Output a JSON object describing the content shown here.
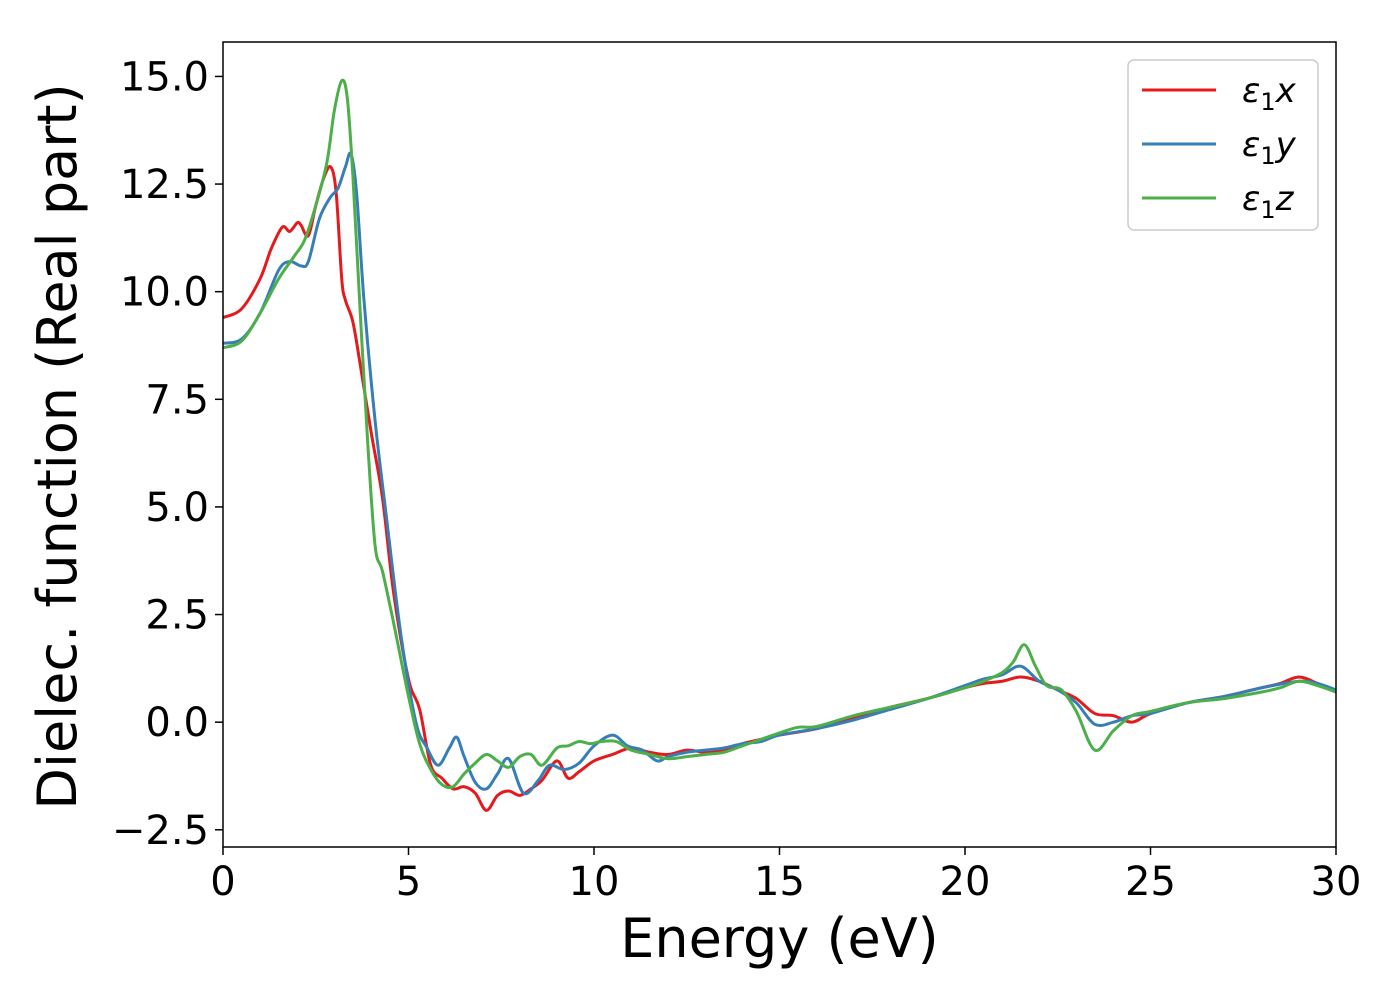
{
  "chart_data": {
    "type": "line",
    "xlabel": "Energy (eV)",
    "ylabel": "Dielec. function (Real part)",
    "xlim": [
      0,
      30
    ],
    "ylim": [
      -2.9,
      15.8
    ],
    "xticks": [
      0,
      5,
      10,
      15,
      20,
      25,
      30
    ],
    "xtick_labels": [
      "0",
      "5",
      "10",
      "15",
      "20",
      "25",
      "30"
    ],
    "yticks": [
      -2.5,
      0.0,
      2.5,
      5.0,
      7.5,
      10.0,
      12.5,
      15.0
    ],
    "ytick_labels": [
      "−2.5",
      "0.0",
      "2.5",
      "5.0",
      "7.5",
      "10.0",
      "12.5",
      "15.0"
    ],
    "grid": false,
    "legend_position": "top-right",
    "series": [
      {
        "name": "ε₁x",
        "legend": {
          "symbol": "ε",
          "sub": "1",
          "axis": "x"
        },
        "color": "#e41a1c",
        "x": [
          0,
          0.5,
          1.0,
          1.3,
          1.6,
          1.8,
          2.0,
          2.1,
          2.3,
          2.5,
          2.7,
          2.9,
          3.05,
          3.2,
          3.3,
          3.5,
          3.7,
          4.0,
          4.3,
          4.6,
          5.0,
          5.3,
          5.6,
          5.9,
          6.2,
          6.5,
          6.8,
          7.1,
          7.4,
          7.7,
          8.0,
          8.3,
          8.6,
          9.0,
          9.3,
          9.6,
          10.0,
          10.5,
          11.0,
          11.5,
          12.0,
          12.5,
          13.0,
          13.5,
          14.0,
          14.5,
          15.0,
          16.0,
          17.0,
          18.0,
          19.0,
          20.0,
          20.5,
          21.0,
          21.5,
          22.0,
          22.5,
          23.0,
          23.5,
          24.0,
          24.5,
          25.0,
          26.0,
          27.0,
          28.0,
          28.5,
          29.0,
          29.5,
          30.0
        ],
        "y": [
          9.4,
          9.6,
          10.3,
          11.0,
          11.5,
          11.4,
          11.6,
          11.55,
          11.3,
          12.0,
          12.6,
          12.9,
          12.3,
          10.3,
          9.8,
          9.3,
          8.3,
          6.7,
          5.2,
          3.0,
          1.0,
          0.3,
          -1.0,
          -1.3,
          -1.55,
          -1.5,
          -1.65,
          -2.05,
          -1.7,
          -1.6,
          -1.7,
          -1.55,
          -1.35,
          -0.9,
          -1.3,
          -1.15,
          -0.9,
          -0.75,
          -0.6,
          -0.7,
          -0.75,
          -0.65,
          -0.7,
          -0.65,
          -0.5,
          -0.4,
          -0.3,
          -0.15,
          0.1,
          0.35,
          0.55,
          0.8,
          0.9,
          0.95,
          1.05,
          0.95,
          0.75,
          0.55,
          0.2,
          0.15,
          0.0,
          0.2,
          0.45,
          0.6,
          0.8,
          0.9,
          1.05,
          0.9,
          0.7
        ]
      },
      {
        "name": "ε₁y",
        "legend": {
          "symbol": "ε",
          "sub": "1",
          "axis": "y"
        },
        "color": "#377eb8",
        "x": [
          0,
          0.5,
          1.0,
          1.5,
          1.8,
          2.1,
          2.3,
          2.6,
          2.9,
          3.1,
          3.3,
          3.45,
          3.6,
          3.8,
          4.1,
          4.4,
          4.8,
          5.2,
          5.5,
          5.8,
          6.1,
          6.3,
          6.5,
          6.8,
          7.1,
          7.4,
          7.7,
          8.1,
          8.5,
          8.8,
          9.2,
          9.6,
          10.0,
          10.5,
          10.9,
          11.3,
          11.7,
          12.0,
          12.5,
          13.0,
          13.5,
          14.0,
          14.5,
          15.0,
          16.0,
          17.0,
          18.0,
          19.0,
          20.0,
          20.5,
          21.0,
          21.5,
          22.0,
          22.5,
          23.0,
          23.5,
          24.0,
          24.5,
          25.0,
          26.0,
          27.0,
          28.0,
          29.0,
          29.5,
          30.0
        ],
        "y": [
          8.8,
          8.9,
          9.5,
          10.5,
          10.7,
          10.6,
          10.7,
          11.7,
          12.2,
          12.4,
          12.9,
          13.2,
          12.3,
          9.8,
          7.0,
          4.8,
          2.0,
          0.0,
          -0.6,
          -1.0,
          -0.6,
          -0.35,
          -0.8,
          -1.4,
          -1.55,
          -1.2,
          -0.85,
          -1.65,
          -1.35,
          -1.0,
          -1.1,
          -0.95,
          -0.55,
          -0.3,
          -0.55,
          -0.65,
          -0.9,
          -0.8,
          -0.7,
          -0.65,
          -0.6,
          -0.5,
          -0.45,
          -0.3,
          -0.15,
          0.05,
          0.3,
          0.55,
          0.85,
          1.0,
          1.1,
          1.3,
          0.95,
          0.75,
          0.45,
          -0.05,
          0.0,
          0.15,
          0.2,
          0.45,
          0.6,
          0.8,
          0.95,
          0.9,
          0.75
        ]
      },
      {
        "name": "ε₁z",
        "legend": {
          "symbol": "ε",
          "sub": "1",
          "axis": "z"
        },
        "color": "#4daf4a",
        "x": [
          0,
          0.5,
          1.0,
          1.5,
          1.9,
          2.2,
          2.5,
          2.8,
          3.0,
          3.2,
          3.35,
          3.5,
          3.7,
          3.9,
          4.1,
          4.3,
          4.6,
          5.0,
          5.3,
          5.6,
          5.9,
          6.2,
          6.5,
          6.8,
          7.1,
          7.4,
          7.7,
          8.0,
          8.3,
          8.6,
          9.0,
          9.3,
          9.6,
          9.9,
          10.2,
          10.6,
          11.0,
          11.5,
          12.0,
          12.5,
          13.0,
          13.5,
          14.0,
          14.5,
          15.0,
          15.5,
          16.0,
          17.0,
          18.0,
          19.0,
          20.0,
          20.5,
          21.0,
          21.3,
          21.6,
          21.9,
          22.2,
          22.6,
          23.0,
          23.5,
          24.0,
          24.5,
          25.0,
          26.0,
          27.0,
          28.0,
          28.5,
          29.0,
          29.5,
          30.0
        ],
        "y": [
          8.7,
          8.85,
          9.5,
          10.3,
          10.8,
          11.2,
          12.0,
          13.0,
          14.2,
          14.9,
          14.5,
          12.7,
          9.5,
          6.5,
          4.1,
          3.5,
          2.3,
          0.6,
          -0.5,
          -1.1,
          -1.45,
          -1.5,
          -1.2,
          -0.95,
          -0.75,
          -0.9,
          -1.05,
          -0.8,
          -0.75,
          -1.0,
          -0.6,
          -0.55,
          -0.45,
          -0.5,
          -0.45,
          -0.45,
          -0.65,
          -0.75,
          -0.85,
          -0.8,
          -0.75,
          -0.7,
          -0.55,
          -0.4,
          -0.25,
          -0.12,
          -0.1,
          0.15,
          0.35,
          0.55,
          0.8,
          0.95,
          1.15,
          1.4,
          1.8,
          1.3,
          0.85,
          0.75,
          0.25,
          -0.65,
          -0.2,
          0.15,
          0.25,
          0.45,
          0.55,
          0.7,
          0.8,
          0.95,
          0.85,
          0.7
        ]
      }
    ]
  }
}
